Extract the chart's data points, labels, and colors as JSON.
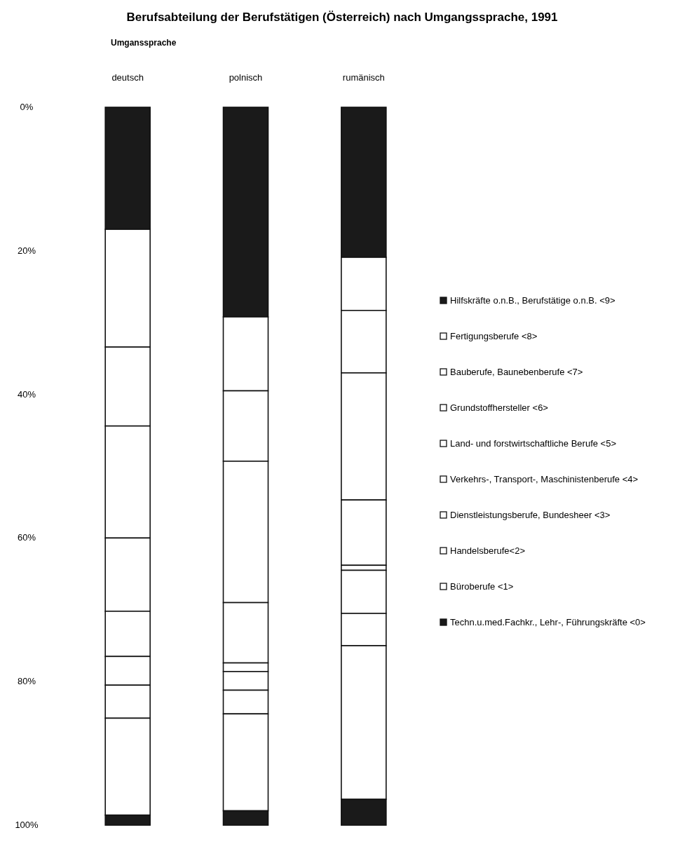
{
  "chart_data": {
    "type": "bar",
    "stacked": true,
    "title": "Berufsabteilung der Berufstätigen (Österreich) nach Umgangssprache, 1991",
    "subtitle": "Umganssprache",
    "categories": [
      "deutsch",
      "polnisch",
      "rumänisch"
    ],
    "ylim": [
      100,
      0
    ],
    "yticks": [
      {
        "value": 0,
        "label": "0%"
      },
      {
        "value": 20,
        "label": "20%"
      },
      {
        "value": 40,
        "label": "40%"
      },
      {
        "value": 60,
        "label": "60%"
      },
      {
        "value": 80,
        "label": "80%"
      },
      {
        "value": 100,
        "label": "100%"
      }
    ],
    "legend": "right",
    "series": [
      {
        "name": "Hilfskräfte o.n.B., Berufstätige o.n.B. <9>",
        "color": "#1a1a1a",
        "values": [
          17.0,
          29.2,
          20.9
        ]
      },
      {
        "name": "Fertigungsberufe <8>",
        "color": "#ffffff",
        "values": [
          16.4,
          10.3,
          7.4
        ]
      },
      {
        "name": "Bauberufe, Baunebenberufe <7>",
        "color": "#ffffff",
        "values": [
          11.0,
          9.8,
          8.7
        ]
      },
      {
        "name": "Grundstoffhersteller <6>",
        "color": "#ffffff",
        "values": [
          15.6,
          19.7,
          17.7
        ]
      },
      {
        "name": "Land- und forstwirtschaftliche Berufe <5>",
        "color": "#ffffff",
        "values": [
          10.2,
          8.4,
          9.1
        ]
      },
      {
        "name": "Verkehrs-, Transport-, Maschinistenberufe <4>",
        "color": "#ffffff",
        "values": [
          6.3,
          1.2,
          0.7
        ]
      },
      {
        "name": "Dienstleistungsberufe, Bundesheer <3>",
        "color": "#ffffff",
        "values": [
          4.0,
          2.6,
          6.0
        ]
      },
      {
        "name": "Handelsberufe<2>",
        "color": "#ffffff",
        "values": [
          4.6,
          3.3,
          4.5
        ]
      },
      {
        "name": "Büroberufe <1>",
        "color": "#ffffff",
        "values": [
          13.5,
          13.5,
          21.4
        ]
      },
      {
        "name": "Techn.u.med.Fachkr., Lehr-, Führungskräfte <0>",
        "color": "#1a1a1a",
        "values": [
          1.4,
          2.0,
          3.6
        ]
      }
    ]
  }
}
